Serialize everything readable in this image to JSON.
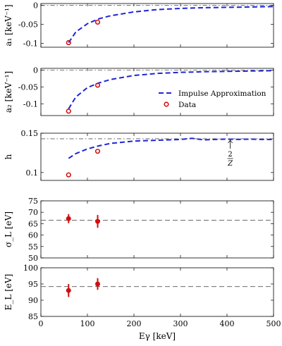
{
  "chart_data": [
    {
      "type": "line",
      "ylabel": "a₁ [keV⁻¹]",
      "ylim": [
        -0.11,
        0.005
      ],
      "yticks": [
        0,
        -0.05,
        -0.1
      ],
      "ytick_labels": [
        "0",
        "-0.05",
        "-0.1"
      ],
      "xlim": [
        0,
        500
      ],
      "show_xtick_labels": false,
      "reference_line": {
        "y": 0,
        "style": "dashdot"
      },
      "series": [
        {
          "kind": "dashed-line",
          "x": [
            59.5,
            75,
            100,
            125,
            150,
            200,
            250,
            300,
            350,
            400,
            450,
            500
          ],
          "y": [
            -0.098,
            -0.07,
            -0.048,
            -0.035,
            -0.027,
            -0.017,
            -0.011,
            -0.008,
            -0.006,
            -0.005,
            -0.004,
            -0.003
          ]
        },
        {
          "kind": "points",
          "x": [
            59.5,
            122
          ],
          "y": [
            -0.098,
            -0.044
          ]
        }
      ]
    },
    {
      "type": "line",
      "ylabel": "a₂ [keV⁻¹]",
      "ylim": [
        -0.135,
        0.005
      ],
      "yticks": [
        0,
        -0.05,
        -0.1
      ],
      "ytick_labels": [
        "0",
        "-0.05",
        "-0.1"
      ],
      "xlim": [
        0,
        500
      ],
      "show_xtick_labels": false,
      "reference_line": {
        "y": 0,
        "style": "dashdot"
      },
      "legend": {
        "position": "right",
        "entries": [
          {
            "label": "Impulse Approximation",
            "marker": "dashed-line"
          },
          {
            "label": "Data",
            "marker": "circle"
          }
        ]
      },
      "series": [
        {
          "kind": "dashed-line",
          "x": [
            59.5,
            75,
            100,
            125,
            150,
            200,
            250,
            300,
            350,
            400,
            450,
            500
          ],
          "y": [
            -0.115,
            -0.08,
            -0.052,
            -0.038,
            -0.028,
            -0.016,
            -0.01,
            -0.007,
            -0.005,
            -0.004,
            -0.003,
            -0.002
          ]
        },
        {
          "kind": "points",
          "x": [
            59.5,
            122
          ],
          "y": [
            -0.122,
            -0.045
          ]
        }
      ]
    },
    {
      "type": "line",
      "ylabel": "h",
      "ylim": [
        0.09,
        0.15
      ],
      "yticks": [
        0.15,
        0.1
      ],
      "ytick_labels": [
        "0.15",
        "0.1"
      ],
      "xlim": [
        0,
        500
      ],
      "show_xtick_labels": false,
      "reference_line": {
        "y": 0.1429,
        "style": "dashdot"
      },
      "annotation": {
        "x": 407,
        "y": 0.1429,
        "label_num": "2",
        "label_den": "Z"
      },
      "series": [
        {
          "kind": "dashed-line",
          "x": [
            59.5,
            75,
            100,
            125,
            150,
            200,
            250,
            300,
            325,
            350,
            375,
            400,
            425,
            450,
            475,
            500
          ],
          "y": [
            0.118,
            0.124,
            0.13,
            0.134,
            0.137,
            0.14,
            0.141,
            0.142,
            0.1435,
            0.1415,
            0.142,
            0.1425,
            0.142,
            0.1425,
            0.142,
            0.142
          ]
        },
        {
          "kind": "points",
          "x": [
            59.5,
            122
          ],
          "y": [
            0.097,
            0.127
          ]
        }
      ]
    },
    {
      "type": "scatter",
      "ylabel": "σ_L [eV]",
      "ylim": [
        50,
        75
      ],
      "yticks": [
        75,
        70,
        65,
        60,
        55,
        50
      ],
      "ytick_labels": [
        "75",
        "70",
        "65",
        "60",
        "55",
        "50"
      ],
      "xlim": [
        0,
        500
      ],
      "show_xtick_labels": false,
      "reference_line": {
        "y": 66.5,
        "style": "dashed"
      },
      "series": [
        {
          "kind": "points-error",
          "x": [
            59.5,
            122
          ],
          "y": [
            67.2,
            66
          ],
          "yerr": [
            2,
            2.8
          ]
        }
      ]
    },
    {
      "type": "scatter",
      "ylabel": "E_L [eV]",
      "ylim": [
        85,
        100
      ],
      "yticks": [
        100,
        95,
        90,
        85
      ],
      "ytick_labels": [
        "100",
        "95",
        "90",
        "85"
      ],
      "xlim": [
        0,
        500
      ],
      "xticks": [
        0,
        100,
        200,
        300,
        400,
        500
      ],
      "xtick_labels": [
        "0",
        "100",
        "200",
        "300",
        "400",
        "500"
      ],
      "show_xtick_labels": true,
      "xlabel": "Eγ [keV]",
      "reference_line": {
        "y": 94.2,
        "style": "dashed"
      },
      "series": [
        {
          "kind": "points-error",
          "x": [
            59.5,
            122
          ],
          "y": [
            93,
            95
          ],
          "yerr": [
            2,
            1.8
          ]
        }
      ]
    }
  ]
}
